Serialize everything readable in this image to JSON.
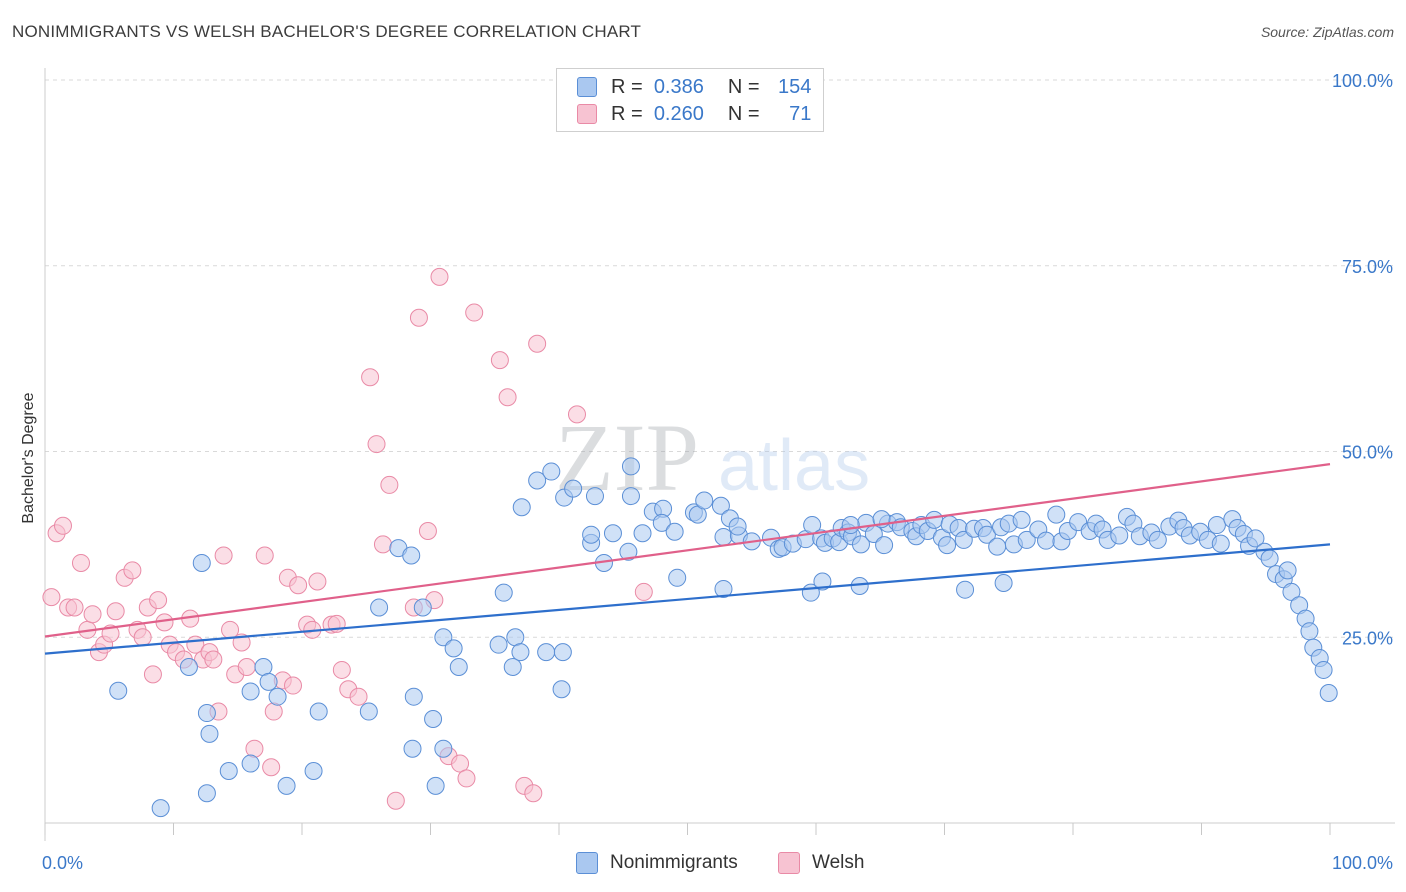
{
  "title": "NONIMMIGRANTS VS WELSH BACHELOR'S DEGREE CORRELATION CHART",
  "source": "Source: ZipAtlas.com",
  "watermark": {
    "zip": "ZIP",
    "atlas": "atlas"
  },
  "legend": {
    "rows": [
      {
        "r_label": "R =",
        "r_value": "0.386",
        "n_label": "N =",
        "n_value": "154"
      },
      {
        "r_label": "R =",
        "r_value": "0.260",
        "n_label": "N =",
        "n_value": "71"
      }
    ]
  },
  "colors": {
    "blue_fill": "#aac8f0",
    "blue_stroke": "#5b8fd6",
    "blue_line": "#2e6fcc",
    "pink_fill": "#f7c3d2",
    "pink_stroke": "#e98aa6",
    "pink_line": "#e0608a",
    "tick_text": "#3a78c9",
    "grid": "#d9d9d9"
  },
  "chart_data": {
    "type": "scatter",
    "title": "NONIMMIGRANTS VS WELSH BACHELOR'S DEGREE CORRELATION CHART",
    "xlabel": "",
    "ylabel": "Bachelor's Degree",
    "xlim": [
      0,
      100
    ],
    "ylim": [
      0,
      100
    ],
    "x_tick_labels": [
      "0.0%",
      "100.0%"
    ],
    "y_tick_labels": [
      "100.0%",
      "75.0%",
      "50.0%",
      "25.0%"
    ],
    "y_ticks": [
      100,
      75,
      50,
      25
    ],
    "grid": true,
    "legend_position": "top-center",
    "series": [
      {
        "name": "Nonimmigrants",
        "r": 0.386,
        "n": 154,
        "trend": {
          "x": [
            0,
            100
          ],
          "y": [
            22.8,
            37.5
          ]
        },
        "points": [
          [
            9,
            2
          ],
          [
            11.2,
            21
          ],
          [
            12.8,
            12
          ],
          [
            12.6,
            4
          ],
          [
            14.3,
            7
          ],
          [
            18.1,
            17
          ],
          [
            16,
            8
          ],
          [
            17,
            21
          ],
          [
            17.4,
            19
          ],
          [
            18.8,
            5
          ],
          [
            20.9,
            7
          ],
          [
            21.3,
            15
          ],
          [
            25.2,
            15
          ],
          [
            28.6,
            10
          ],
          [
            30.4,
            5
          ],
          [
            31,
            10
          ],
          [
            31,
            25
          ],
          [
            29.4,
            29
          ],
          [
            30.2,
            14
          ],
          [
            28.7,
            17
          ],
          [
            31.8,
            23.5
          ],
          [
            32.2,
            21
          ],
          [
            35.3,
            24
          ],
          [
            36.6,
            25
          ],
          [
            36.4,
            21
          ],
          [
            37,
            23
          ],
          [
            38.3,
            46.1
          ],
          [
            39.4,
            47.3
          ],
          [
            39,
            23
          ],
          [
            40.3,
            23
          ],
          [
            40.2,
            18
          ],
          [
            40.4,
            43.8
          ],
          [
            41.1,
            45
          ],
          [
            42.8,
            44
          ],
          [
            42.5,
            37.7
          ],
          [
            42.5,
            38.8
          ],
          [
            44.2,
            39
          ],
          [
            45.6,
            44
          ],
          [
            45.6,
            48
          ],
          [
            46.5,
            39
          ],
          [
            47.3,
            41.9
          ],
          [
            48.1,
            42.3
          ],
          [
            48,
            40.4
          ],
          [
            49,
            39.2
          ],
          [
            50.5,
            41.8
          ],
          [
            50.8,
            41.5
          ],
          [
            51.3,
            43.4
          ],
          [
            52.6,
            42.7
          ],
          [
            52.8,
            38.5
          ],
          [
            53.3,
            41
          ],
          [
            54,
            38.7
          ],
          [
            53.9,
            39.9
          ],
          [
            55,
            37.9
          ],
          [
            56.5,
            38.4
          ],
          [
            57.1,
            36.9
          ],
          [
            57.4,
            37.1
          ],
          [
            58.2,
            37.6
          ],
          [
            59.2,
            38.2
          ],
          [
            59.7,
            40.1
          ],
          [
            60.4,
            38.3
          ],
          [
            60.7,
            37.7
          ],
          [
            61.3,
            38.3
          ],
          [
            61.8,
            37.8
          ],
          [
            62,
            39.7
          ],
          [
            62.5,
            39.1
          ],
          [
            62.8,
            38.6
          ],
          [
            63.5,
            37.5
          ],
          [
            63.9,
            40.4
          ],
          [
            64.5,
            38.9
          ],
          [
            65.3,
            37.4
          ],
          [
            65.6,
            40.3
          ],
          [
            66.3,
            40.5
          ],
          [
            66.6,
            39.8
          ],
          [
            67.5,
            39.3
          ],
          [
            67.8,
            38.6
          ],
          [
            68.2,
            40.1
          ],
          [
            68.7,
            39.3
          ],
          [
            69.2,
            40.8
          ],
          [
            69.8,
            38.4
          ],
          [
            70.2,
            37.4
          ],
          [
            70.4,
            40.2
          ],
          [
            71.1,
            39.7
          ],
          [
            71.5,
            38.1
          ],
          [
            72.3,
            39.6
          ],
          [
            73,
            39.7
          ],
          [
            73.3,
            38.8
          ],
          [
            74.1,
            37.2
          ],
          [
            74.4,
            39.8
          ],
          [
            75,
            40.3
          ],
          [
            75.4,
            37.5
          ],
          [
            76,
            40.8
          ],
          [
            76.4,
            38.1
          ],
          [
            77.3,
            39.5
          ],
          [
            77.9,
            38
          ],
          [
            78.7,
            41.5
          ],
          [
            79.1,
            37.9
          ],
          [
            79.6,
            39.3
          ],
          [
            80.4,
            40.5
          ],
          [
            81.3,
            39.3
          ],
          [
            81.8,
            40.3
          ],
          [
            82.3,
            39.5
          ],
          [
            82.7,
            38.1
          ],
          [
            83.6,
            38.7
          ],
          [
            84.2,
            41.2
          ],
          [
            84.7,
            40.3
          ],
          [
            85.2,
            38.6
          ],
          [
            86.1,
            39.1
          ],
          [
            86.6,
            38.1
          ],
          [
            87.5,
            39.9
          ],
          [
            88.2,
            40.7
          ],
          [
            88.6,
            39.7
          ],
          [
            89.1,
            38.7
          ],
          [
            89.9,
            39.2
          ],
          [
            90.5,
            38.1
          ],
          [
            91.2,
            40.1
          ],
          [
            91.5,
            37.6
          ],
          [
            92.4,
            40.9
          ],
          [
            92.8,
            39.7
          ],
          [
            93.3,
            38.9
          ],
          [
            93.7,
            37.3
          ],
          [
            94.2,
            38.3
          ],
          [
            94.9,
            36.5
          ],
          [
            95.3,
            35.6
          ],
          [
            95.8,
            33.5
          ],
          [
            96.4,
            32.8
          ],
          [
            96.7,
            34
          ],
          [
            97,
            31.1
          ],
          [
            97.6,
            29.3
          ],
          [
            98.1,
            27.5
          ],
          [
            98.4,
            25.8
          ],
          [
            98.7,
            23.6
          ],
          [
            99.2,
            22.2
          ],
          [
            99.5,
            20.6
          ],
          [
            99.9,
            17.5
          ],
          [
            5.7,
            17.8
          ],
          [
            12.6,
            14.8
          ],
          [
            16,
            17.7
          ],
          [
            12.2,
            35
          ],
          [
            26,
            29
          ],
          [
            27.5,
            37
          ],
          [
            28.5,
            36
          ],
          [
            35.7,
            31
          ],
          [
            37.1,
            42.5
          ],
          [
            43.5,
            35
          ],
          [
            45.4,
            36.5
          ],
          [
            49.2,
            33
          ],
          [
            52.8,
            31.5
          ],
          [
            59.6,
            31
          ],
          [
            60.5,
            32.5
          ],
          [
            62.7,
            40.1
          ],
          [
            63.4,
            31.9
          ],
          [
            65.1,
            40.9
          ],
          [
            71.6,
            31.4
          ],
          [
            74.6,
            32.3
          ]
        ]
      },
      {
        "name": "Welsh",
        "r": 0.26,
        "n": 71,
        "trend": {
          "x": [
            0,
            100
          ],
          "y": [
            25.1,
            48.3
          ]
        },
        "points": [
          [
            0.5,
            30.4
          ],
          [
            0.9,
            39
          ],
          [
            1.4,
            40
          ],
          [
            1.8,
            29
          ],
          [
            2.3,
            29
          ],
          [
            2.8,
            35
          ],
          [
            3.3,
            26
          ],
          [
            3.7,
            28.1
          ],
          [
            4.2,
            23
          ],
          [
            4.6,
            24
          ],
          [
            5.1,
            25.5
          ],
          [
            5.5,
            28.5
          ],
          [
            6.2,
            33
          ],
          [
            6.8,
            34
          ],
          [
            7.2,
            26
          ],
          [
            7.6,
            25
          ],
          [
            8,
            29
          ],
          [
            8.4,
            20
          ],
          [
            8.8,
            30
          ],
          [
            9.3,
            27
          ],
          [
            9.7,
            24
          ],
          [
            10.2,
            23
          ],
          [
            10.8,
            22
          ],
          [
            11.3,
            27.5
          ],
          [
            11.7,
            24
          ],
          [
            12.3,
            22
          ],
          [
            12.8,
            23
          ],
          [
            13.1,
            22
          ],
          [
            13.5,
            15
          ],
          [
            13.9,
            36
          ],
          [
            14.4,
            26
          ],
          [
            14.8,
            20
          ],
          [
            15.3,
            24.3
          ],
          [
            15.7,
            21
          ],
          [
            16.3,
            10
          ],
          [
            17.1,
            36
          ],
          [
            17.6,
            7.5
          ],
          [
            17.8,
            15
          ],
          [
            18.5,
            19.2
          ],
          [
            18.9,
            33
          ],
          [
            19.3,
            18.5
          ],
          [
            19.7,
            32
          ],
          [
            20.4,
            26.7
          ],
          [
            20.8,
            26
          ],
          [
            21.2,
            32.5
          ],
          [
            22.3,
            26.7
          ],
          [
            22.7,
            26.8
          ],
          [
            23.1,
            20.6
          ],
          [
            23.6,
            18
          ],
          [
            24.4,
            17
          ],
          [
            25.3,
            60
          ],
          [
            25.8,
            51
          ],
          [
            26.3,
            37.5
          ],
          [
            26.8,
            45.5
          ],
          [
            27.3,
            3
          ],
          [
            28.7,
            29
          ],
          [
            29.1,
            68
          ],
          [
            29.8,
            39.3
          ],
          [
            30.3,
            30
          ],
          [
            30.7,
            73.5
          ],
          [
            31.4,
            9
          ],
          [
            32.3,
            8
          ],
          [
            32.8,
            6
          ],
          [
            33.4,
            68.7
          ],
          [
            35.4,
            62.3
          ],
          [
            36,
            57.3
          ],
          [
            37.3,
            5
          ],
          [
            38,
            4
          ],
          [
            38.3,
            64.5
          ],
          [
            41.4,
            55
          ],
          [
            46.6,
            31.1
          ]
        ]
      }
    ]
  }
}
